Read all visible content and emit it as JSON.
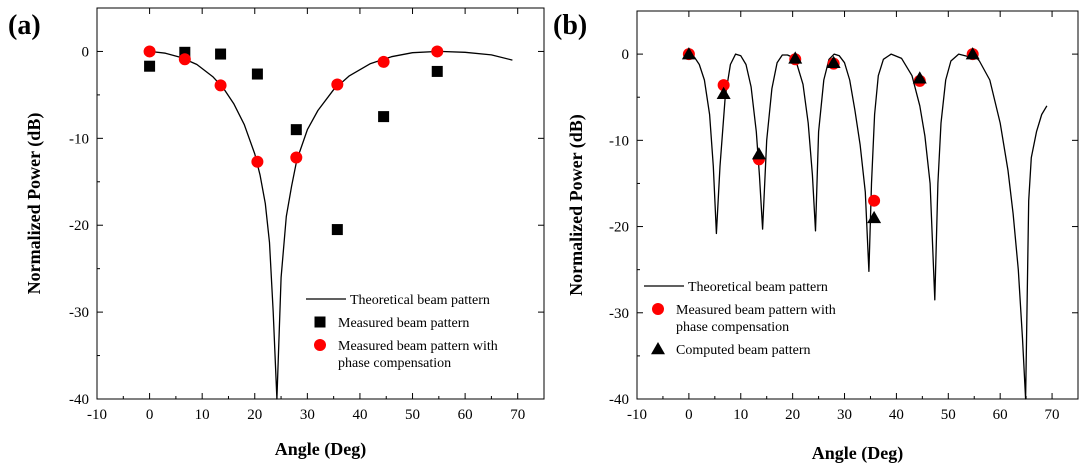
{
  "chart_data": [
    {
      "type": "line",
      "panel_label": "(a)",
      "xlabel": "Angle (Deg)",
      "ylabel": "Normalized Power (dB)",
      "xlim": [
        -10,
        75
      ],
      "ylim": [
        -40,
        5
      ],
      "xticks": [
        -10,
        0,
        10,
        20,
        30,
        40,
        50,
        60,
        70
      ],
      "yticks": [
        -40,
        -30,
        -20,
        -10,
        0
      ],
      "legend_position": "bottom-right",
      "series": [
        {
          "name": "Theoretical beam pattern",
          "style": "line",
          "color": "#000000",
          "x": [
            0,
            3,
            6,
            9,
            12,
            14,
            16,
            18,
            20,
            21,
            22,
            22.8,
            23.5,
            24.2,
            25,
            26,
            27,
            28,
            30,
            32,
            35,
            38,
            42,
            46,
            50,
            55,
            60,
            65,
            69
          ],
          "y": [
            0,
            -0.2,
            -0.7,
            -1.5,
            -2.9,
            -4.2,
            -6.0,
            -8.4,
            -11.8,
            -14.2,
            -17.5,
            -22.0,
            -30.0,
            -40.0,
            -26.0,
            -19.0,
            -15.5,
            -12.5,
            -9.0,
            -6.8,
            -4.4,
            -2.8,
            -1.4,
            -0.6,
            -0.15,
            0,
            -0.1,
            -0.4,
            -1.0
          ]
        },
        {
          "name": "Measured beam pattern",
          "style": "square",
          "color": "#000000",
          "x": [
            0,
            6.7,
            13.5,
            20.5,
            27.9,
            35.7,
            44.5,
            54.7
          ],
          "y": [
            -1.7,
            -0.1,
            -0.3,
            -2.6,
            -9.0,
            -20.5,
            -7.5,
            -2.3
          ]
        },
        {
          "name": "Measured beam pattern with phase compensation",
          "style": "circle",
          "color": "#ff0000",
          "x": [
            0,
            6.7,
            13.5,
            20.5,
            27.9,
            35.7,
            44.5,
            54.7
          ],
          "y": [
            0,
            -0.9,
            -3.9,
            -12.7,
            -12.2,
            -3.8,
            -1.2,
            0
          ]
        }
      ],
      "legend": [
        {
          "style": "line",
          "lines": [
            "Theoretical beam pattern"
          ]
        },
        {
          "style": "square",
          "lines": [
            "Measured beam pattern"
          ]
        },
        {
          "style": "circle",
          "lines": [
            "Measured beam pattern with",
            "phase compensation"
          ]
        }
      ]
    },
    {
      "type": "line",
      "panel_label": "(b)",
      "xlabel": "Angle (Deg)",
      "ylabel": "Normalized Power (dB)",
      "xlim": [
        -10,
        75
      ],
      "ylim": [
        -40,
        5
      ],
      "xticks": [
        -10,
        0,
        10,
        20,
        30,
        40,
        50,
        60,
        70
      ],
      "yticks": [
        -40,
        -30,
        -20,
        -10,
        0
      ],
      "legend_position": "bottom-left",
      "series": [
        {
          "name": "Theoretical beam pattern",
          "style": "line",
          "color": "#000000",
          "x": [
            0,
            1,
            2,
            3,
            4,
            4.7,
            5.3,
            6,
            7,
            8,
            9,
            10,
            11,
            12,
            13,
            13.6,
            14.2,
            15,
            16,
            17,
            18,
            19,
            20.5,
            22,
            23,
            23.8,
            24.4,
            25,
            26,
            27,
            28,
            29,
            30,
            31,
            32,
            33,
            34,
            34.7,
            35.2,
            35.8,
            36.5,
            37.5,
            39,
            41,
            43,
            44.5,
            45.5,
            46.5,
            47.4,
            48,
            48.6,
            49.5,
            50.5,
            52,
            54,
            55,
            56,
            58,
            60,
            61.5,
            62.5,
            63.5,
            64.3,
            64.9,
            65.5,
            66,
            67,
            68,
            69
          ],
          "y": [
            0,
            -0.3,
            -1.2,
            -3.0,
            -7.0,
            -13.0,
            -20.8,
            -13.0,
            -5.0,
            -1.2,
            0,
            -0.2,
            -1.2,
            -3.8,
            -9.0,
            -14.0,
            -20.3,
            -10.0,
            -4.0,
            -1.0,
            -0.1,
            -0.1,
            -0.5,
            -3.5,
            -8.0,
            -14.0,
            -20.5,
            -9.0,
            -3.0,
            -0.6,
            0,
            -0.2,
            -1.0,
            -3.0,
            -6.5,
            -10.5,
            -16.0,
            -25.2,
            -15.0,
            -7.0,
            -2.5,
            -0.6,
            0,
            -0.5,
            -2.5,
            -6.0,
            -9.5,
            -15.0,
            -28.5,
            -15.0,
            -8.0,
            -3.0,
            -0.8,
            0,
            -0.3,
            -0.1,
            -0.8,
            -3.0,
            -8.0,
            -13.5,
            -18.5,
            -25.0,
            -33.0,
            -40.0,
            -17.0,
            -12.0,
            -9.0,
            -7.0,
            -6.0
          ]
        },
        {
          "name": "Measured beam pattern with phase compensation",
          "style": "circle",
          "color": "#ff0000",
          "x": [
            0,
            6.7,
            13.5,
            20.5,
            27.9,
            35.7,
            44.5,
            54.7
          ],
          "y": [
            0,
            -3.6,
            -12.2,
            -0.6,
            -1.1,
            -17.0,
            -3.1,
            0
          ]
        },
        {
          "name": "Computed beam pattern",
          "style": "triangle",
          "color": "#000000",
          "x": [
            0,
            6.7,
            13.5,
            20.5,
            27.9,
            35.7,
            44.5,
            54.7
          ],
          "y": [
            0,
            -4.6,
            -11.6,
            -0.5,
            -1.0,
            -19.0,
            -2.8,
            0
          ]
        }
      ],
      "legend": [
        {
          "style": "line",
          "lines": [
            "Theoretical beam pattern"
          ]
        },
        {
          "style": "circle",
          "lines": [
            "Measured beam pattern with",
            " phase compensation"
          ]
        },
        {
          "style": "triangle",
          "lines": [
            "Computed beam pattern"
          ]
        }
      ]
    }
  ]
}
